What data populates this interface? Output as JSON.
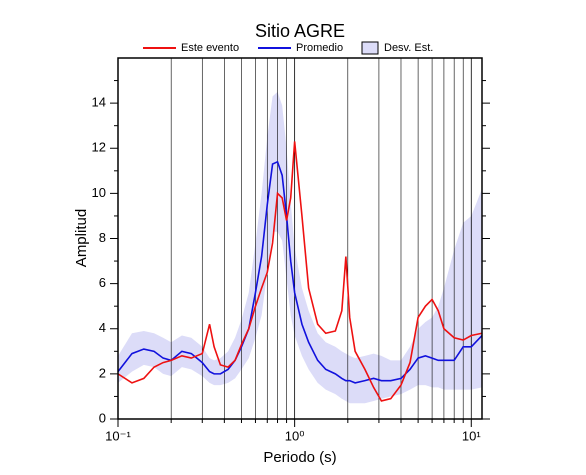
{
  "chart_data": {
    "type": "line",
    "title": "Sitio AGRE",
    "x_label": "Periodo (s)",
    "y_label": "Amplitud",
    "x_log": true,
    "grid": true,
    "legend_position": "top",
    "xlim": [
      0.1,
      11.5
    ],
    "ylim": [
      0,
      16
    ],
    "xticks": [
      {
        "value": 0.1,
        "label": "10⁻¹"
      },
      {
        "value": 1,
        "label": "10⁰"
      },
      {
        "value": 10,
        "label": "10¹"
      }
    ],
    "x_minor_ticks": [
      0.2,
      0.3,
      0.4,
      0.5,
      0.6,
      0.7,
      0.8,
      0.9,
      2,
      3,
      4,
      5,
      6,
      7,
      8,
      9
    ],
    "yticks": [
      0,
      2,
      4,
      6,
      8,
      10,
      12,
      14
    ],
    "y_minor_ticks": [
      1,
      3,
      5,
      7,
      9,
      11,
      13,
      15
    ],
    "x": [
      0.1,
      0.12,
      0.14,
      0.16,
      0.18,
      0.2,
      0.23,
      0.26,
      0.3,
      0.33,
      0.35,
      0.38,
      0.42,
      0.46,
      0.5,
      0.55,
      0.6,
      0.65,
      0.7,
      0.75,
      0.8,
      0.85,
      0.9,
      0.95,
      1.0,
      1.1,
      1.2,
      1.35,
      1.5,
      1.7,
      1.85,
      1.95,
      2.05,
      2.2,
      2.5,
      2.8,
      3.1,
      3.5,
      4,
      4.5,
      5,
      5.5,
      6,
      6.5,
      7,
      8,
      9,
      10,
      11.5
    ],
    "series": [
      {
        "name": "Este evento",
        "color": "#ee1111",
        "values": [
          2.0,
          1.6,
          1.8,
          2.3,
          2.5,
          2.6,
          2.8,
          2.7,
          2.9,
          4.2,
          3.2,
          2.4,
          2.3,
          2.6,
          3.3,
          4.0,
          5.0,
          5.8,
          6.5,
          7.8,
          10.0,
          9.8,
          8.8,
          9.8,
          12.3,
          9.0,
          5.8,
          4.2,
          3.8,
          3.9,
          4.8,
          7.2,
          4.5,
          3.0,
          2.2,
          1.4,
          0.8,
          0.9,
          1.5,
          2.5,
          4.5,
          5.0,
          5.3,
          4.8,
          4.0,
          3.6,
          3.5,
          3.7,
          3.8
        ]
      },
      {
        "name": "Promedio",
        "color": "#1111dd",
        "values": [
          2.1,
          2.9,
          3.1,
          3.0,
          2.7,
          2.6,
          3.0,
          2.9,
          2.5,
          2.1,
          2.0,
          2.0,
          2.2,
          2.6,
          3.2,
          4.0,
          5.6,
          7.2,
          9.5,
          11.3,
          11.4,
          10.8,
          9.0,
          7.0,
          5.6,
          4.2,
          3.4,
          2.6,
          2.2,
          2.0,
          1.8,
          1.7,
          1.7,
          1.6,
          1.7,
          1.8,
          1.7,
          1.7,
          1.8,
          2.2,
          2.7,
          2.8,
          2.7,
          2.6,
          2.6,
          2.6,
          3.2,
          3.2,
          3.7
        ]
      }
    ],
    "band": {
      "name": "Desv. Est.",
      "color": "#dcdcf8",
      "upper": [
        2.8,
        3.8,
        3.9,
        3.8,
        3.6,
        3.4,
        3.7,
        3.6,
        3.2,
        2.7,
        2.6,
        2.7,
        3.0,
        3.6,
        4.4,
        5.6,
        7.8,
        10.0,
        12.5,
        14.3,
        14.5,
        13.9,
        12.0,
        9.6,
        7.6,
        5.8,
        4.8,
        3.8,
        3.4,
        3.2,
        3.0,
        2.9,
        2.8,
        2.7,
        2.8,
        2.9,
        2.8,
        2.6,
        2.6,
        3.2,
        4.0,
        4.3,
        4.5,
        5.0,
        5.8,
        7.5,
        8.7,
        9.0,
        10.2
      ],
      "lower": [
        1.6,
        2.1,
        2.4,
        2.3,
        2.0,
        1.9,
        2.3,
        2.2,
        1.9,
        1.6,
        1.5,
        1.5,
        1.6,
        1.8,
        2.2,
        2.7,
        3.6,
        4.6,
        6.5,
        8.3,
        8.3,
        7.9,
        6.2,
        4.6,
        3.7,
        2.8,
        2.2,
        1.6,
        1.3,
        1.1,
        0.9,
        0.8,
        0.7,
        0.7,
        0.7,
        0.8,
        0.9,
        1.0,
        1.1,
        1.3,
        1.5,
        1.5,
        1.4,
        1.4,
        1.3,
        1.3,
        1.3,
        1.3,
        1.4
      ]
    }
  }
}
